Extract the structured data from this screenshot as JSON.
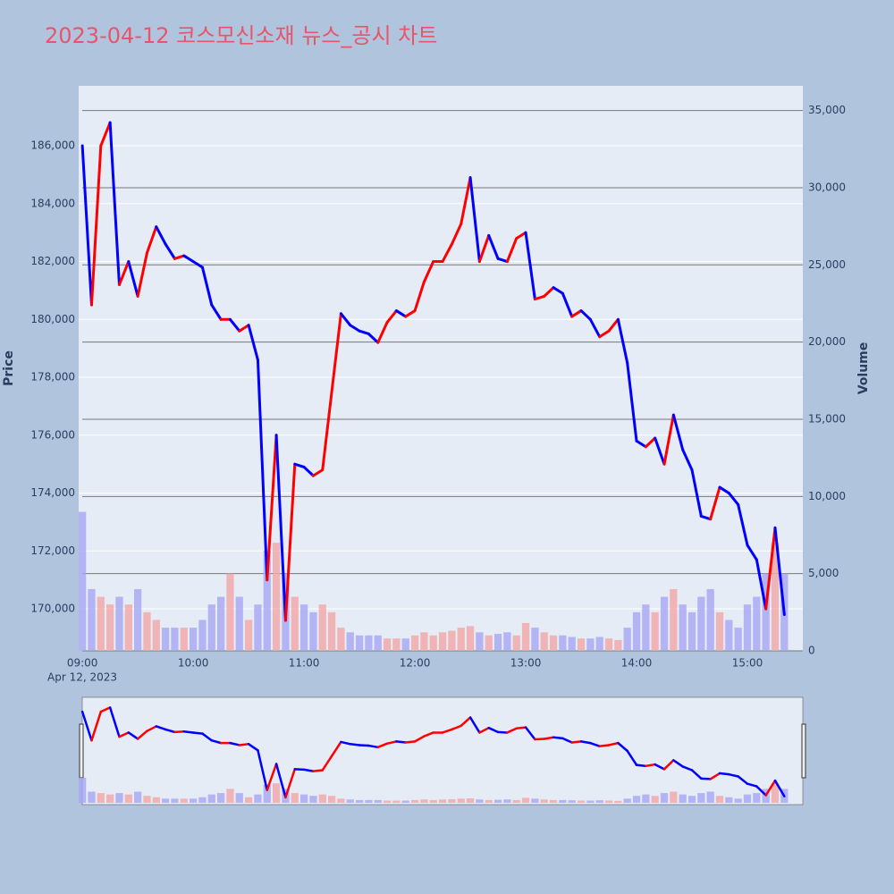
{
  "chart_data": {
    "type": "line",
    "title": "2023-04-12 코스모신소재 뉴스_공시 차트",
    "y_label": "Price",
    "y2_label": "Volume",
    "x_date_label": "Apr 12, 2023",
    "x": [
      "09:00",
      "09:05",
      "09:10",
      "09:15",
      "09:20",
      "09:25",
      "09:30",
      "09:35",
      "09:40",
      "09:45",
      "09:50",
      "09:55",
      "10:00",
      "10:05",
      "10:10",
      "10:15",
      "10:20",
      "10:25",
      "10:30",
      "10:35",
      "10:40",
      "10:45",
      "10:50",
      "10:55",
      "11:00",
      "11:05",
      "11:10",
      "11:15",
      "11:20",
      "11:25",
      "11:30",
      "11:35",
      "11:40",
      "11:45",
      "11:50",
      "11:55",
      "12:00",
      "12:05",
      "12:10",
      "12:15",
      "12:20",
      "12:25",
      "12:30",
      "12:35",
      "12:40",
      "12:45",
      "12:50",
      "12:55",
      "13:00",
      "13:05",
      "13:10",
      "13:15",
      "13:20",
      "13:25",
      "13:30",
      "13:35",
      "13:40",
      "13:45",
      "13:50",
      "13:55",
      "14:00",
      "14:05",
      "14:10",
      "14:15",
      "14:20",
      "14:25",
      "14:30",
      "14:35",
      "14:40",
      "14:45",
      "14:50",
      "14:55",
      "15:00",
      "15:05",
      "15:10",
      "15:15",
      "15:20"
    ],
    "price": {
      "increasing_color": "#ff0000",
      "decreasing_color": "#0000ff",
      "values": [
        186000,
        180500,
        186000,
        186800,
        181200,
        182000,
        180800,
        182300,
        183200,
        182600,
        182100,
        182200,
        182000,
        181800,
        180500,
        180000,
        180000,
        179600,
        179800,
        178600,
        171000,
        176000,
        169600,
        175000,
        174900,
        174600,
        174800,
        177500,
        180200,
        179800,
        179600,
        179500,
        179200,
        179900,
        180300,
        180100,
        180300,
        181300,
        182000,
        182000,
        182600,
        183300,
        184900,
        182000,
        182900,
        182100,
        182000,
        182800,
        183000,
        180700,
        180800,
        181100,
        180900,
        180100,
        180300,
        180000,
        179400,
        179600,
        180000,
        178500,
        175800,
        175600,
        175900,
        175000,
        176700,
        175500,
        174800,
        173200,
        173100,
        174200,
        174000,
        173600,
        172200,
        171700,
        170000,
        172800,
        169800
      ]
    },
    "volume": {
      "axis": "y2",
      "increasing_color": "#f4a6a6",
      "decreasing_color": "#a6a6f4",
      "values": [
        9000,
        4000,
        3500,
        3000,
        3500,
        3000,
        4000,
        2500,
        2000,
        1500,
        1500,
        1500,
        1500,
        2000,
        3000,
        3500,
        5000,
        3500,
        2000,
        3000,
        6500,
        7000,
        5000,
        3500,
        3000,
        2500,
        3000,
        2500,
        1500,
        1200,
        1000,
        1000,
        1000,
        800,
        800,
        800,
        1000,
        1200,
        1000,
        1200,
        1300,
        1500,
        1600,
        1200,
        1000,
        1100,
        1200,
        1000,
        1800,
        1500,
        1200,
        1000,
        1000,
        900,
        800,
        800,
        900,
        800,
        700,
        1500,
        2500,
        3000,
        2500,
        3500,
        4000,
        3000,
        2500,
        3500,
        4000,
        2500,
        2000,
        1500,
        3000,
        3500,
        5000,
        7000,
        5000
      ]
    },
    "xlim": [
      "08:58",
      "15:30"
    ],
    "xticks": [
      "09:00",
      "10:00",
      "11:00",
      "12:00",
      "13:00",
      "14:00",
      "15:00"
    ],
    "ylim": [
      168550,
      188070
    ],
    "yticks": [
      {
        "value": 170000,
        "label": "170,000"
      },
      {
        "value": 172000,
        "label": "172,000"
      },
      {
        "value": 174000,
        "label": "174,000"
      },
      {
        "value": 176000,
        "label": "176,000"
      },
      {
        "value": 178000,
        "label": "178,000"
      },
      {
        "value": 180000,
        "label": "180,000"
      },
      {
        "value": 182000,
        "label": "182,000"
      },
      {
        "value": 184000,
        "label": "184,000"
      },
      {
        "value": 186000,
        "label": "186,000"
      }
    ],
    "y2lim": [
      0,
      36600
    ],
    "y2ticks": [
      0,
      {
        "value": 5000,
        "label": "5,000"
      },
      {
        "value": 10000,
        "label": "10,000"
      },
      {
        "value": 15000,
        "label": "15,000"
      },
      {
        "value": 20000,
        "label": "20,000"
      },
      {
        "value": 25000,
        "label": "25,000"
      },
      {
        "value": 30000,
        "label": "30,000"
      },
      {
        "value": 35000,
        "label": "35,000"
      }
    ],
    "grid": true,
    "range_slider": true
  }
}
